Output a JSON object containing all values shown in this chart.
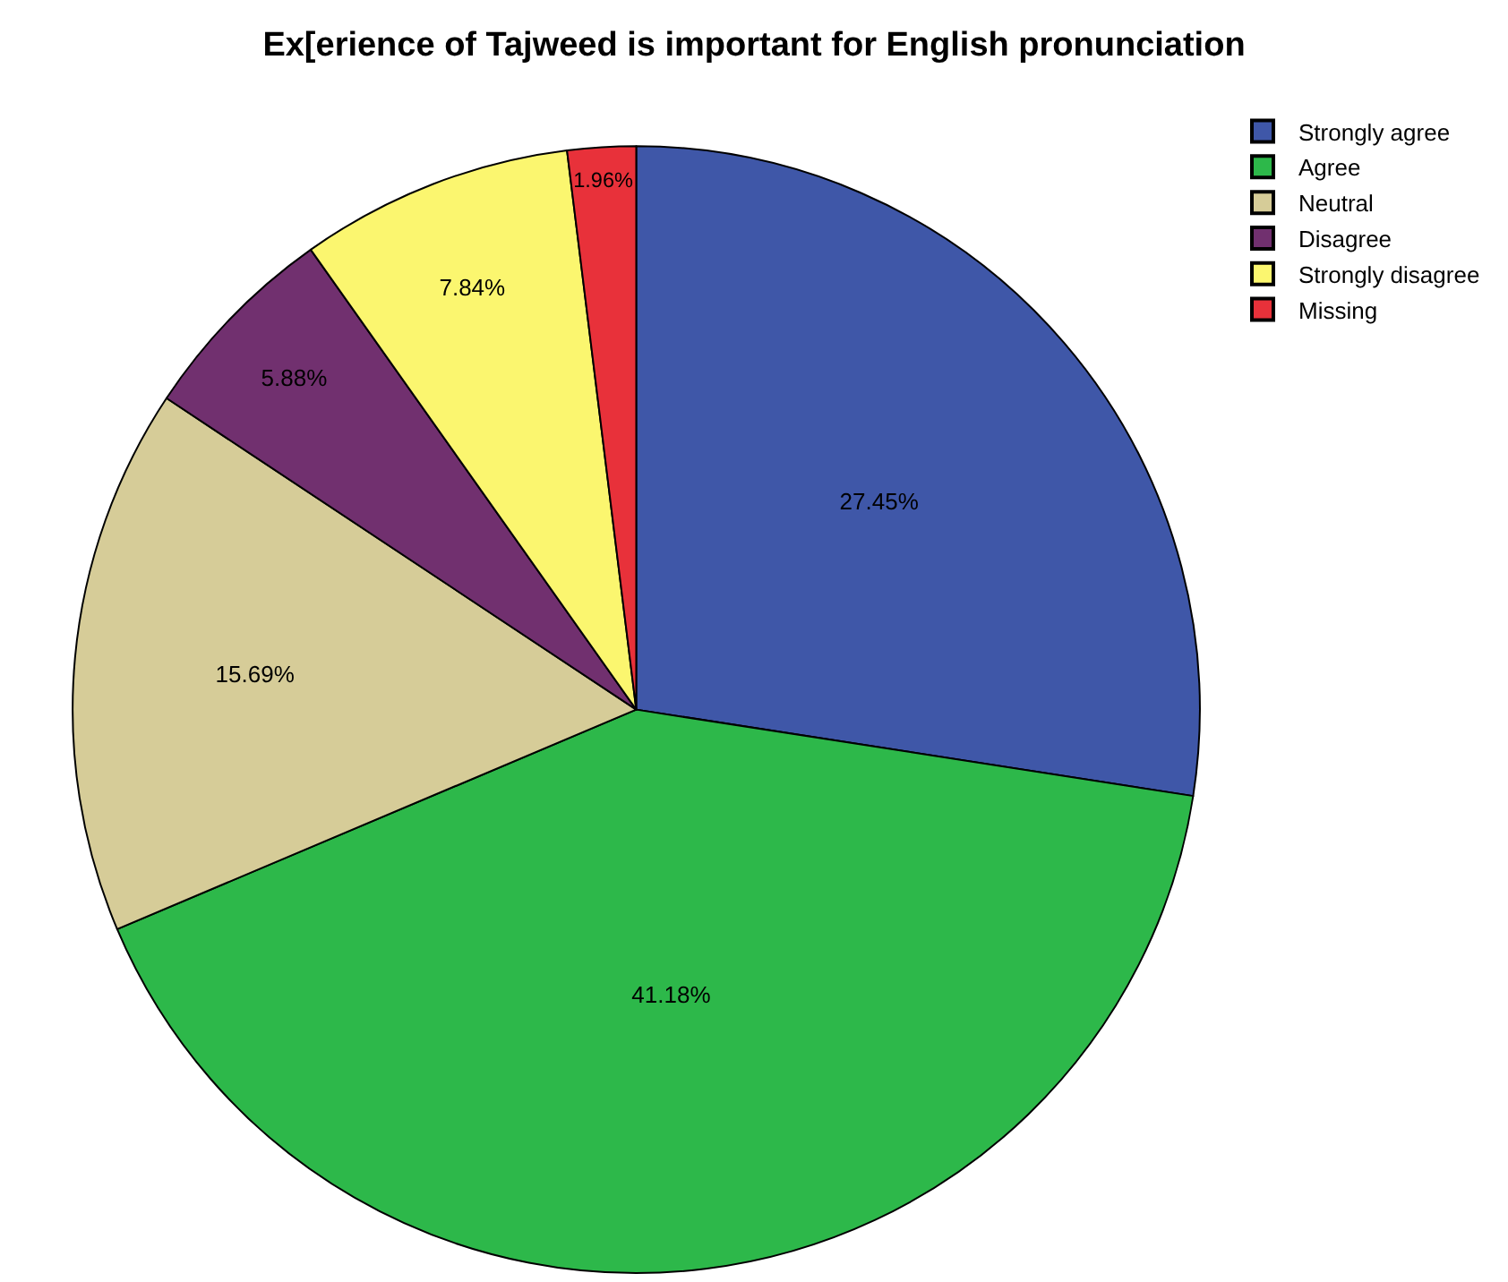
{
  "chart_data": {
    "type": "pie",
    "title": "Ex[erience of Tajweed is important for English pronunciation",
    "categories": [
      "Strongly agree",
      "Agree",
      "Neutral",
      "Disagree",
      "Strongly disagree",
      "Missing"
    ],
    "values": [
      27.45,
      41.18,
      15.69,
      5.88,
      7.84,
      1.96
    ],
    "colors": [
      "#3f57a8",
      "#2db84a",
      "#d6cc98",
      "#71306f",
      "#fbf66f",
      "#e8313a"
    ],
    "value_labels": [
      "27.45%",
      "41.18%",
      "15.69%",
      "5.88%",
      "7.84%",
      "1.96%"
    ],
    "legend": "top right"
  }
}
